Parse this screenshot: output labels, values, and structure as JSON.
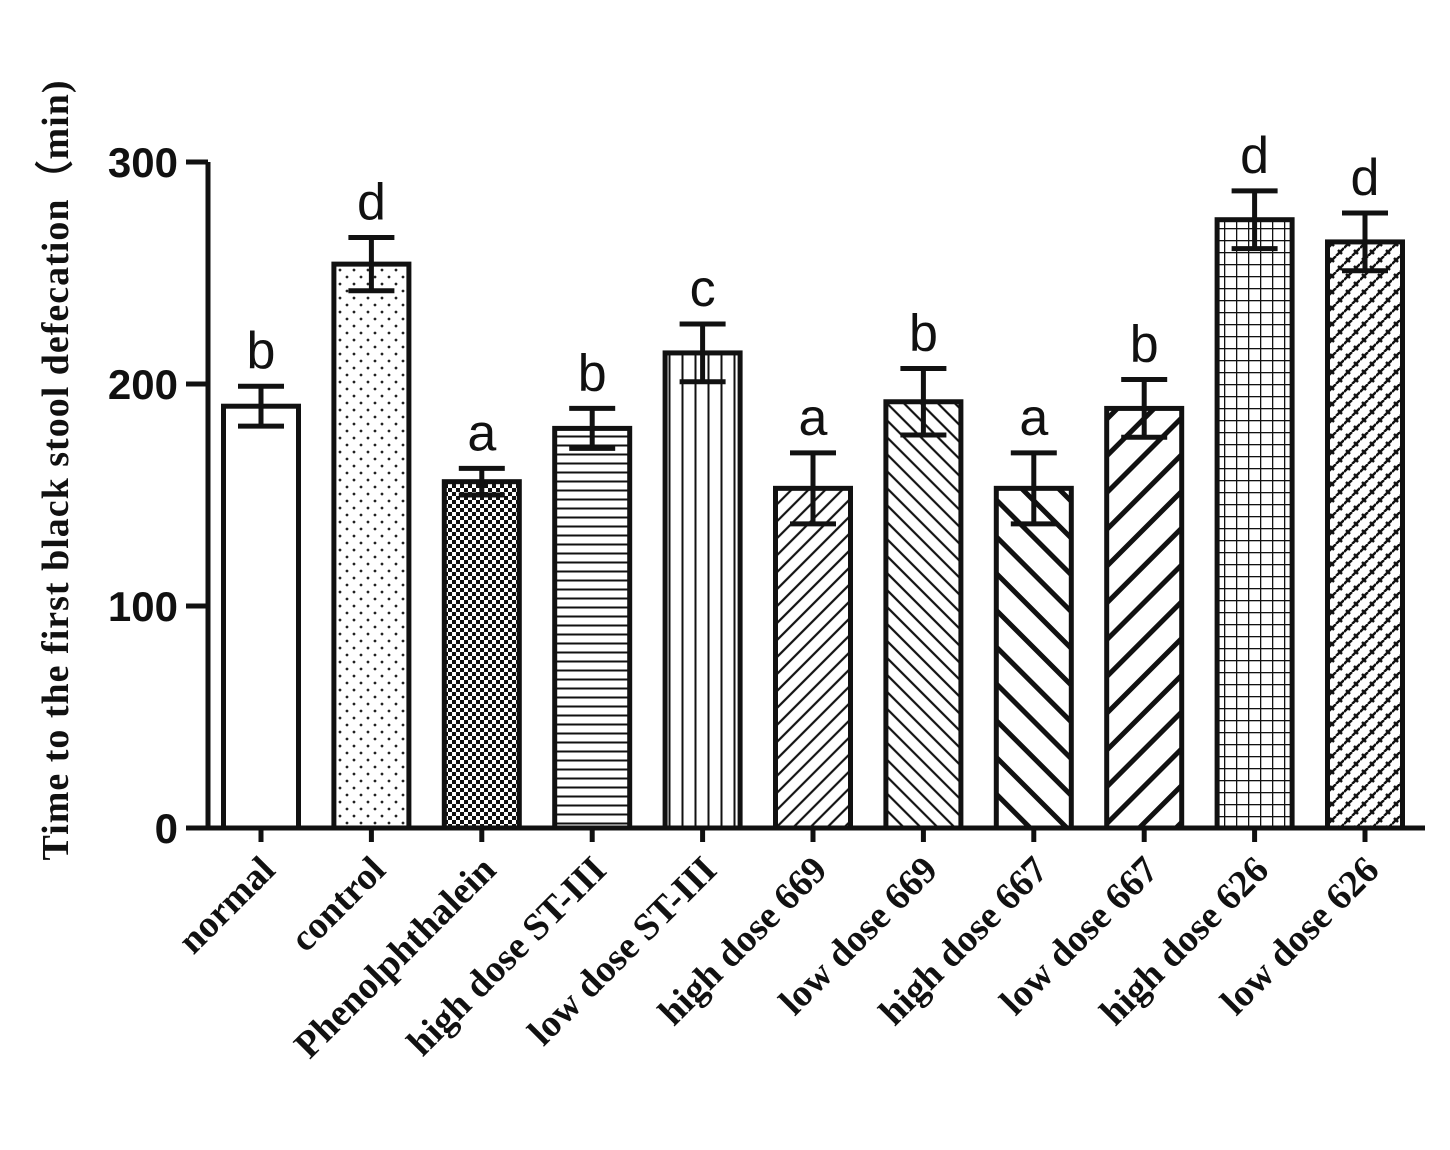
{
  "chart_data": {
    "type": "bar",
    "title": "",
    "xlabel": "",
    "ylabel": "Time to the first black stool defecation（min)",
    "ylim": [
      0,
      300
    ],
    "yticks": [
      0,
      100,
      200,
      300
    ],
    "categories": [
      "normal",
      "control",
      "Phenolphthalein",
      "high dose ST-III",
      "low dose ST-III",
      "high dose 669",
      "low dose 669",
      "high dose 667",
      "low dose 667",
      "high dose 626",
      "low dose 626"
    ],
    "values": [
      190,
      254,
      156,
      180,
      214,
      153,
      192,
      153,
      189,
      274,
      264
    ],
    "errors": [
      9,
      12,
      6,
      9,
      13,
      16,
      15,
      16,
      13,
      13,
      13
    ],
    "significance": [
      "b",
      "d",
      "a",
      "b",
      "c",
      "a",
      "b",
      "a",
      "b",
      "d",
      "d"
    ],
    "patterns": [
      "none",
      "dots",
      "checker",
      "hlines",
      "vlines",
      "diag-fine",
      "diag-back-fine",
      "diag-back-wide",
      "diag-wide",
      "grid",
      "weave"
    ]
  }
}
